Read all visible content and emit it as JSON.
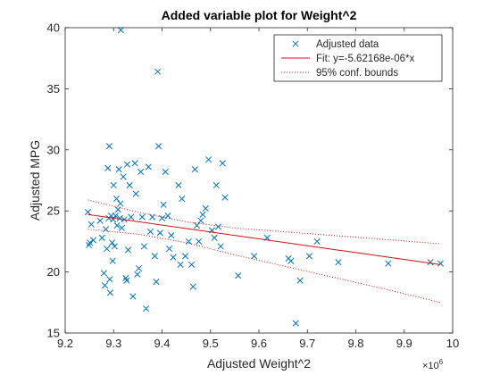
{
  "chart_data": {
    "type": "scatter",
    "title": "Added variable plot for Weight^2",
    "xlabel": "Adjusted Weight^2",
    "ylabel": "Adjusted MPG",
    "x_exponent_label": "×10",
    "x_exponent_power": "6",
    "x_scale": 1000000,
    "xlim": [
      9.2,
      10.0
    ],
    "ylim": [
      15,
      40
    ],
    "x_ticks": [
      9.2,
      9.3,
      9.4,
      9.5,
      9.6,
      9.7,
      9.8,
      9.9,
      10.0
    ],
    "x_tick_labels": [
      "9.2",
      "9.3",
      "9.4",
      "9.5",
      "9.6",
      "9.7",
      "9.8",
      "9.9",
      "10"
    ],
    "y_ticks": [
      15,
      20,
      25,
      30,
      35,
      40
    ],
    "y_tick_labels": [
      "15",
      "20",
      "25",
      "30",
      "35",
      "40"
    ],
    "grid": false,
    "legend_position": "top-right",
    "legend": [
      {
        "label": "Adjusted data",
        "marker": "x",
        "color": "#0072BD"
      },
      {
        "label": "Fit: y=-5.62168e-06*x",
        "line": "solid",
        "color": "#D01010"
      },
      {
        "label": "95% conf. bounds",
        "line": "dotted",
        "color": "#D01010"
      }
    ],
    "colors": {
      "data": "#0072BD",
      "fit": "#D01010",
      "axis": "#262626"
    },
    "series": [
      {
        "name": "Adjusted data",
        "kind": "scatter",
        "points": [
          [
            9.247,
            24.9
          ],
          [
            9.249,
            22.2
          ],
          [
            9.251,
            22.4
          ],
          [
            9.254,
            23.9
          ],
          [
            9.258,
            22.6
          ],
          [
            9.272,
            24.2
          ],
          [
            9.276,
            22.8
          ],
          [
            9.28,
            19.9
          ],
          [
            9.282,
            18.9
          ],
          [
            9.284,
            23.5
          ],
          [
            9.286,
            21.9
          ],
          [
            9.288,
            28.5
          ],
          [
            9.29,
            24.4
          ],
          [
            9.291,
            30.3
          ],
          [
            9.292,
            19.4
          ],
          [
            9.293,
            18.3
          ],
          [
            9.295,
            24.6
          ],
          [
            9.297,
            22.4
          ],
          [
            9.298,
            20.9
          ],
          [
            9.299,
            24.3
          ],
          [
            9.3,
            27.1
          ],
          [
            9.302,
            22.1
          ],
          [
            9.304,
            24.6
          ],
          [
            9.306,
            26.0
          ],
          [
            9.307,
            23.8
          ],
          [
            9.309,
            25.1
          ],
          [
            9.311,
            28.4
          ],
          [
            9.313,
            24.4
          ],
          [
            9.314,
            25.6
          ],
          [
            9.315,
            39.8
          ],
          [
            9.317,
            23.6
          ],
          [
            9.32,
            27.8
          ],
          [
            9.322,
            24.3
          ],
          [
            9.325,
            19.5
          ],
          [
            9.327,
            19.3
          ],
          [
            9.328,
            28.8
          ],
          [
            9.33,
            21.8
          ],
          [
            9.333,
            27.1
          ],
          [
            9.336,
            24.5
          ],
          [
            9.34,
            18.0
          ],
          [
            9.344,
            28.9
          ],
          [
            9.346,
            26.4
          ],
          [
            9.349,
            19.8
          ],
          [
            9.352,
            20.3
          ],
          [
            9.356,
            28.2
          ],
          [
            9.359,
            24.5
          ],
          [
            9.363,
            22.1
          ],
          [
            9.367,
            17.0
          ],
          [
            9.372,
            28.6
          ],
          [
            9.376,
            23.3
          ],
          [
            9.38,
            24.5
          ],
          [
            9.385,
            21.3
          ],
          [
            9.388,
            19.2
          ],
          [
            9.391,
            36.4
          ],
          [
            9.393,
            30.3
          ],
          [
            9.396,
            23.2
          ],
          [
            9.4,
            24.4
          ],
          [
            9.403,
            25.5
          ],
          [
            9.407,
            28.2
          ],
          [
            9.412,
            24.6
          ],
          [
            9.415,
            21.9
          ],
          [
            9.419,
            23.0
          ],
          [
            9.423,
            21.2
          ],
          [
            9.434,
            27.1
          ],
          [
            9.438,
            20.6
          ],
          [
            9.441,
            26.0
          ],
          [
            9.448,
            21.3
          ],
          [
            9.455,
            22.5
          ],
          [
            9.461,
            20.6
          ],
          [
            9.464,
            18.8
          ],
          [
            9.468,
            28.4
          ],
          [
            9.472,
            23.8
          ],
          [
            9.476,
            22.5
          ],
          [
            9.48,
            24.2
          ],
          [
            9.484,
            24.7
          ],
          [
            9.49,
            25.2
          ],
          [
            9.496,
            29.2
          ],
          [
            9.503,
            23.4
          ],
          [
            9.508,
            22.8
          ],
          [
            9.512,
            27.1
          ],
          [
            9.516,
            23.7
          ],
          [
            9.521,
            22.1
          ],
          [
            9.525,
            28.9
          ],
          [
            9.53,
            26.1
          ],
          [
            9.557,
            19.7
          ],
          [
            9.59,
            21.3
          ],
          [
            9.617,
            22.8
          ],
          [
            9.661,
            21.1
          ],
          [
            9.666,
            20.9
          ],
          [
            9.676,
            15.8
          ],
          [
            9.685,
            19.3
          ],
          [
            9.704,
            21.3
          ],
          [
            9.72,
            22.5
          ],
          [
            9.764,
            20.8
          ],
          [
            9.867,
            20.7
          ],
          [
            9.954,
            20.8
          ],
          [
            9.975,
            20.7
          ]
        ]
      },
      {
        "name": "Fit: y=-5.62168e-06*x",
        "kind": "line",
        "points": [
          [
            9.247,
            24.7
          ],
          [
            9.975,
            20.6
          ]
        ]
      },
      {
        "name": "95% conf. bounds",
        "kind": "line",
        "points": [
          [
            9.247,
            25.9
          ],
          [
            9.35,
            24.9
          ],
          [
            9.45,
            24.1
          ],
          [
            9.55,
            23.6
          ],
          [
            9.65,
            23.3
          ],
          [
            9.75,
            23.0
          ],
          [
            9.85,
            22.7
          ],
          [
            9.975,
            22.3
          ]
        ]
      },
      {
        "name": "95% conf. bounds",
        "kind": "line",
        "points": [
          [
            9.247,
            23.5
          ],
          [
            9.35,
            23.1
          ],
          [
            9.45,
            22.4
          ],
          [
            9.55,
            21.4
          ],
          [
            9.65,
            20.5
          ],
          [
            9.75,
            19.6
          ],
          [
            9.85,
            18.7
          ],
          [
            9.975,
            17.5
          ]
        ]
      }
    ]
  }
}
